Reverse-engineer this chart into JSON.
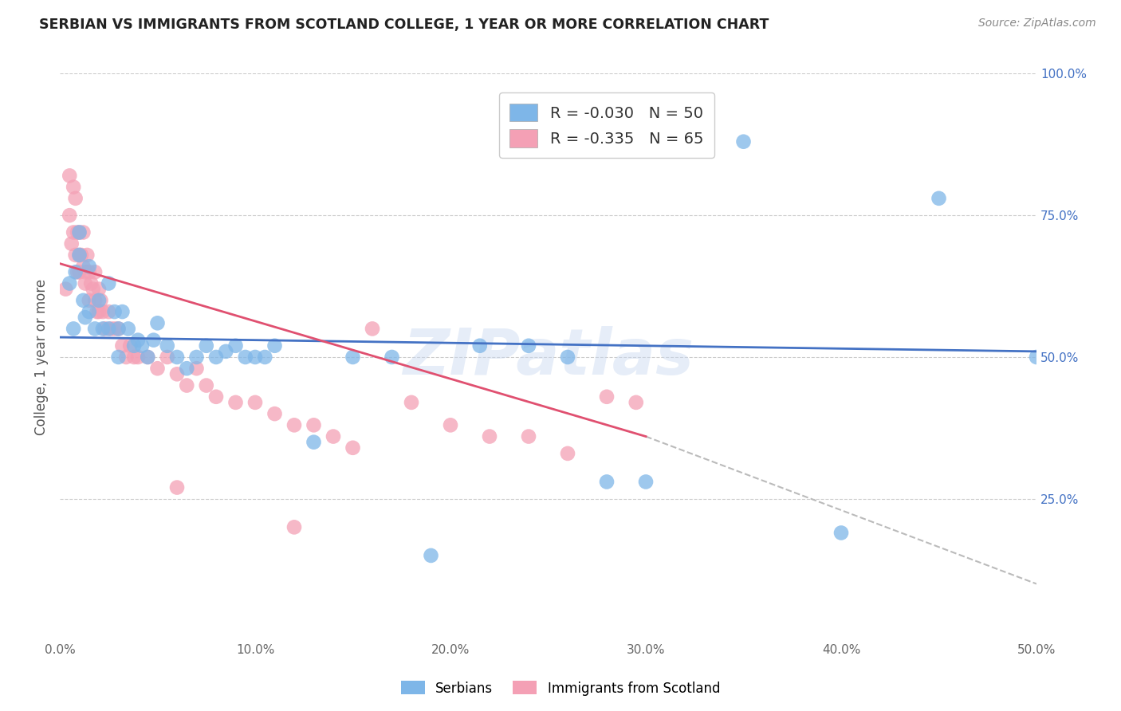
{
  "title": "SERBIAN VS IMMIGRANTS FROM SCOTLAND COLLEGE, 1 YEAR OR MORE CORRELATION CHART",
  "source": "Source: ZipAtlas.com",
  "ylabel": "College, 1 year or more",
  "xlim": [
    0.0,
    0.5
  ],
  "ylim": [
    0.0,
    1.0
  ],
  "xtick_labels": [
    "0.0%",
    "10.0%",
    "20.0%",
    "30.0%",
    "40.0%",
    "50.0%"
  ],
  "xtick_vals": [
    0.0,
    0.1,
    0.2,
    0.3,
    0.4,
    0.5
  ],
  "ytick_labels": [
    "25.0%",
    "50.0%",
    "75.0%",
    "100.0%"
  ],
  "ytick_vals": [
    0.25,
    0.5,
    0.75,
    1.0
  ],
  "legend_labels": [
    "Serbians",
    "Immigrants from Scotland"
  ],
  "legend_R": [
    -0.03,
    -0.335
  ],
  "legend_N": [
    50,
    65
  ],
  "blue_color": "#7EB6E8",
  "pink_color": "#F4A0B5",
  "blue_line_color": "#4472C4",
  "pink_line_color": "#E05070",
  "dashed_line_color": "#BBBBBB",
  "watermark": "ZIPatlas",
  "blue_trend": [
    0.0,
    0.5,
    0.535,
    0.51
  ],
  "pink_trend_solid": [
    0.0,
    0.3,
    0.665,
    0.36
  ],
  "pink_trend_dash": [
    0.3,
    0.5,
    0.36,
    0.1
  ],
  "serbians_x": [
    0.005,
    0.007,
    0.008,
    0.01,
    0.01,
    0.012,
    0.013,
    0.015,
    0.015,
    0.018,
    0.02,
    0.022,
    0.025,
    0.025,
    0.028,
    0.03,
    0.03,
    0.032,
    0.035,
    0.038,
    0.04,
    0.042,
    0.045,
    0.048,
    0.05,
    0.055,
    0.06,
    0.065,
    0.07,
    0.075,
    0.08,
    0.085,
    0.09,
    0.095,
    0.1,
    0.105,
    0.11,
    0.13,
    0.15,
    0.17,
    0.19,
    0.215,
    0.24,
    0.26,
    0.28,
    0.3,
    0.35,
    0.4,
    0.45,
    0.5
  ],
  "serbians_y": [
    0.63,
    0.55,
    0.65,
    0.68,
    0.72,
    0.6,
    0.57,
    0.58,
    0.66,
    0.55,
    0.6,
    0.55,
    0.63,
    0.55,
    0.58,
    0.55,
    0.5,
    0.58,
    0.55,
    0.52,
    0.53,
    0.52,
    0.5,
    0.53,
    0.56,
    0.52,
    0.5,
    0.48,
    0.5,
    0.52,
    0.5,
    0.51,
    0.52,
    0.5,
    0.5,
    0.5,
    0.52,
    0.35,
    0.5,
    0.5,
    0.15,
    0.52,
    0.52,
    0.5,
    0.28,
    0.28,
    0.88,
    0.19,
    0.78,
    0.5
  ],
  "scotland_x": [
    0.003,
    0.005,
    0.005,
    0.006,
    0.007,
    0.007,
    0.008,
    0.008,
    0.009,
    0.009,
    0.01,
    0.01,
    0.01,
    0.011,
    0.012,
    0.012,
    0.013,
    0.013,
    0.014,
    0.015,
    0.015,
    0.016,
    0.017,
    0.018,
    0.018,
    0.019,
    0.02,
    0.02,
    0.021,
    0.022,
    0.023,
    0.025,
    0.026,
    0.028,
    0.03,
    0.032,
    0.034,
    0.036,
    0.038,
    0.04,
    0.045,
    0.05,
    0.055,
    0.06,
    0.065,
    0.07,
    0.075,
    0.08,
    0.09,
    0.1,
    0.11,
    0.12,
    0.13,
    0.14,
    0.15,
    0.16,
    0.18,
    0.2,
    0.22,
    0.24,
    0.26,
    0.28,
    0.295,
    0.12,
    0.06
  ],
  "scotland_y": [
    0.62,
    0.82,
    0.75,
    0.7,
    0.8,
    0.72,
    0.78,
    0.68,
    0.72,
    0.65,
    0.72,
    0.68,
    0.65,
    0.68,
    0.72,
    0.66,
    0.65,
    0.63,
    0.68,
    0.65,
    0.6,
    0.63,
    0.62,
    0.65,
    0.6,
    0.58,
    0.62,
    0.58,
    0.6,
    0.58,
    0.55,
    0.58,
    0.55,
    0.55,
    0.55,
    0.52,
    0.5,
    0.52,
    0.5,
    0.5,
    0.5,
    0.48,
    0.5,
    0.47,
    0.45,
    0.48,
    0.45,
    0.43,
    0.42,
    0.42,
    0.4,
    0.38,
    0.38,
    0.36,
    0.34,
    0.55,
    0.42,
    0.38,
    0.36,
    0.36,
    0.33,
    0.43,
    0.42,
    0.2,
    0.27
  ]
}
